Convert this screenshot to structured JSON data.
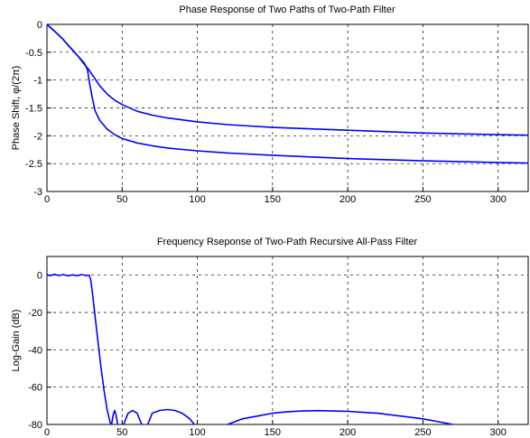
{
  "chart_data": [
    {
      "type": "line",
      "title": "Phase Response of Two Paths of Two-Path Filter",
      "xlabel": "",
      "ylabel": "Phase Shift,  φ/(2π)",
      "xlim": [
        0,
        320
      ],
      "ylim": [
        -3,
        0
      ],
      "xticks": [
        0,
        50,
        100,
        150,
        200,
        250,
        300
      ],
      "yticks": [
        0,
        -0.5,
        -1,
        -1.5,
        -2,
        -2.5,
        -3
      ],
      "ytick_labels": [
        "0",
        "-0.5",
        "-1",
        "-1.5",
        "-2",
        "-2.5",
        "-3"
      ],
      "grid": true,
      "color": "#0000ff",
      "series": [
        {
          "x": [
            0,
            5,
            10,
            15,
            20,
            25,
            28,
            30,
            35,
            40,
            45,
            50,
            60,
            70,
            80,
            100,
            120,
            150,
            200,
            250,
            300,
            320
          ],
          "y": [
            0,
            -0.12,
            -0.25,
            -0.4,
            -0.55,
            -0.72,
            -0.82,
            -0.9,
            -1.1,
            -1.25,
            -1.36,
            -1.44,
            -1.56,
            -1.63,
            -1.68,
            -1.75,
            -1.8,
            -1.85,
            -1.9,
            -1.95,
            -1.98,
            -1.99
          ]
        },
        {
          "x": [
            0,
            5,
            10,
            15,
            20,
            25,
            27,
            28,
            30,
            32,
            35,
            40,
            45,
            50,
            60,
            70,
            80,
            100,
            120,
            150,
            200,
            250,
            300,
            320
          ],
          "y": [
            0,
            -0.12,
            -0.25,
            -0.4,
            -0.55,
            -0.7,
            -0.82,
            -1.0,
            -1.3,
            -1.55,
            -1.72,
            -1.88,
            -1.98,
            -2.05,
            -2.13,
            -2.18,
            -2.22,
            -2.27,
            -2.31,
            -2.35,
            -2.41,
            -2.45,
            -2.48,
            -2.49
          ]
        }
      ]
    },
    {
      "type": "line",
      "title": "Frequency Rseponse of Two-Path Recursive All-Pass Filter",
      "xlabel": "",
      "ylabel": "Log-Gain (dB)",
      "xlim": [
        0,
        320
      ],
      "ylim": [
        -80,
        10
      ],
      "xticks": [
        0,
        50,
        100,
        150,
        200,
        250,
        300
      ],
      "yticks": [
        0,
        -20,
        -40,
        -60,
        -80
      ],
      "ytick_labels": [
        "0",
        "-20",
        "-40",
        "-60",
        "-80"
      ],
      "grid": true,
      "color": "#0000ff",
      "series": [
        {
          "x": [
            0,
            2,
            5,
            8,
            11,
            14,
            17,
            20,
            23,
            26,
            28,
            29,
            30,
            32,
            34,
            36,
            38,
            40,
            42,
            43
          ],
          "y": [
            0.3,
            -0.3,
            0.4,
            -0.2,
            0.3,
            -0.4,
            0.2,
            -0.3,
            0.3,
            -0.2,
            0,
            -2,
            -8,
            -22,
            -36,
            -50,
            -62,
            -72,
            -79,
            -80
          ]
        },
        {
          "x": [
            43,
            44,
            45,
            46,
            47
          ],
          "y": [
            -80,
            -75,
            -72.5,
            -75,
            -80
          ]
        },
        {
          "x": [
            51,
            54,
            57,
            60,
            63
          ],
          "y": [
            -80,
            -74,
            -72.5,
            -74,
            -80
          ]
        },
        {
          "x": [
            67,
            70,
            75,
            80,
            85,
            90,
            95,
            98
          ],
          "y": [
            -80,
            -74,
            -72.5,
            -72,
            -72.5,
            -74,
            -77,
            -80
          ]
        },
        {
          "x": [
            120,
            130,
            140,
            150,
            160,
            170,
            180,
            190,
            200,
            210,
            220,
            230,
            240,
            250,
            260,
            270
          ],
          "y": [
            -80,
            -77,
            -75.5,
            -74,
            -73.2,
            -72.8,
            -72.6,
            -72.8,
            -73,
            -73.5,
            -74,
            -75,
            -76,
            -77,
            -78.5,
            -80
          ]
        }
      ]
    }
  ]
}
